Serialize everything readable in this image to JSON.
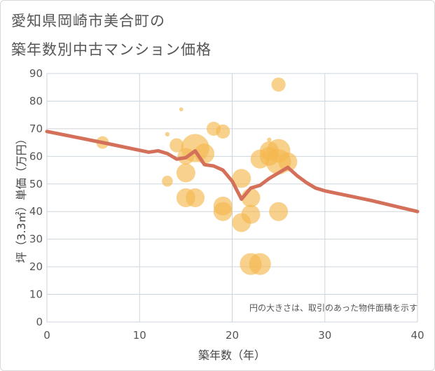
{
  "chart_data": {
    "type": "scatter",
    "title_line1": "愛知県岡崎市美合町の",
    "title_line2": "築年数別中古マンション価格",
    "xlabel": "築年数（年）",
    "ylabel": "坪（3.3㎡）単価（万円）",
    "xlim": [
      0,
      40
    ],
    "ylim": [
      0,
      90
    ],
    "xticks": [
      0,
      10,
      20,
      30,
      40
    ],
    "yticks": [
      0,
      10,
      20,
      30,
      40,
      50,
      60,
      70,
      80,
      90
    ],
    "grid": true,
    "note": "円の大きさは、取引のあった物件面積を示す",
    "colors": {
      "bubble": "#f5b94e",
      "trend": "#d4705a"
    },
    "points": [
      {
        "x": 6,
        "y": 65,
        "s": 4
      },
      {
        "x": 13,
        "y": 51,
        "s": 3
      },
      {
        "x": 13,
        "y": 68,
        "s": 0.5
      },
      {
        "x": 14,
        "y": 64,
        "s": 5
      },
      {
        "x": 14.5,
        "y": 77,
        "s": 0.4
      },
      {
        "x": 15,
        "y": 54,
        "s": 9
      },
      {
        "x": 15,
        "y": 60,
        "s": 7
      },
      {
        "x": 15,
        "y": 45,
        "s": 9
      },
      {
        "x": 16,
        "y": 45,
        "s": 9
      },
      {
        "x": 16,
        "y": 63,
        "s": 20
      },
      {
        "x": 17,
        "y": 61,
        "s": 10
      },
      {
        "x": 18,
        "y": 70,
        "s": 5
      },
      {
        "x": 19,
        "y": 69,
        "s": 5
      },
      {
        "x": 19,
        "y": 42,
        "s": 9
      },
      {
        "x": 19,
        "y": 40,
        "s": 9
      },
      {
        "x": 21,
        "y": 52,
        "s": 9
      },
      {
        "x": 21,
        "y": 36,
        "s": 9
      },
      {
        "x": 22,
        "y": 45,
        "s": 9
      },
      {
        "x": 22,
        "y": 39,
        "s": 9
      },
      {
        "x": 22,
        "y": 21,
        "s": 12
      },
      {
        "x": 23,
        "y": 21,
        "s": 12
      },
      {
        "x": 23,
        "y": 59,
        "s": 9
      },
      {
        "x": 24,
        "y": 62,
        "s": 9
      },
      {
        "x": 24,
        "y": 60,
        "s": 9
      },
      {
        "x": 24,
        "y": 66,
        "s": 0.5
      },
      {
        "x": 25,
        "y": 62,
        "s": 14
      },
      {
        "x": 25,
        "y": 58,
        "s": 16
      },
      {
        "x": 25,
        "y": 86,
        "s": 5
      },
      {
        "x": 25,
        "y": 40,
        "s": 9
      },
      {
        "x": 26,
        "y": 58,
        "s": 9
      }
    ],
    "trend_line": {
      "x": [
        0,
        6,
        11,
        12,
        13,
        14,
        15,
        16,
        17,
        18,
        19,
        20,
        21,
        22,
        23,
        24,
        25,
        26,
        27,
        28,
        29,
        30,
        35,
        40
      ],
      "y": [
        69,
        65,
        61.5,
        62,
        61,
        59,
        59.5,
        62,
        57,
        56.5,
        55,
        51,
        44.5,
        48.5,
        49.5,
        52,
        54,
        56,
        53,
        50.5,
        48.5,
        47.5,
        44,
        40
      ]
    }
  }
}
